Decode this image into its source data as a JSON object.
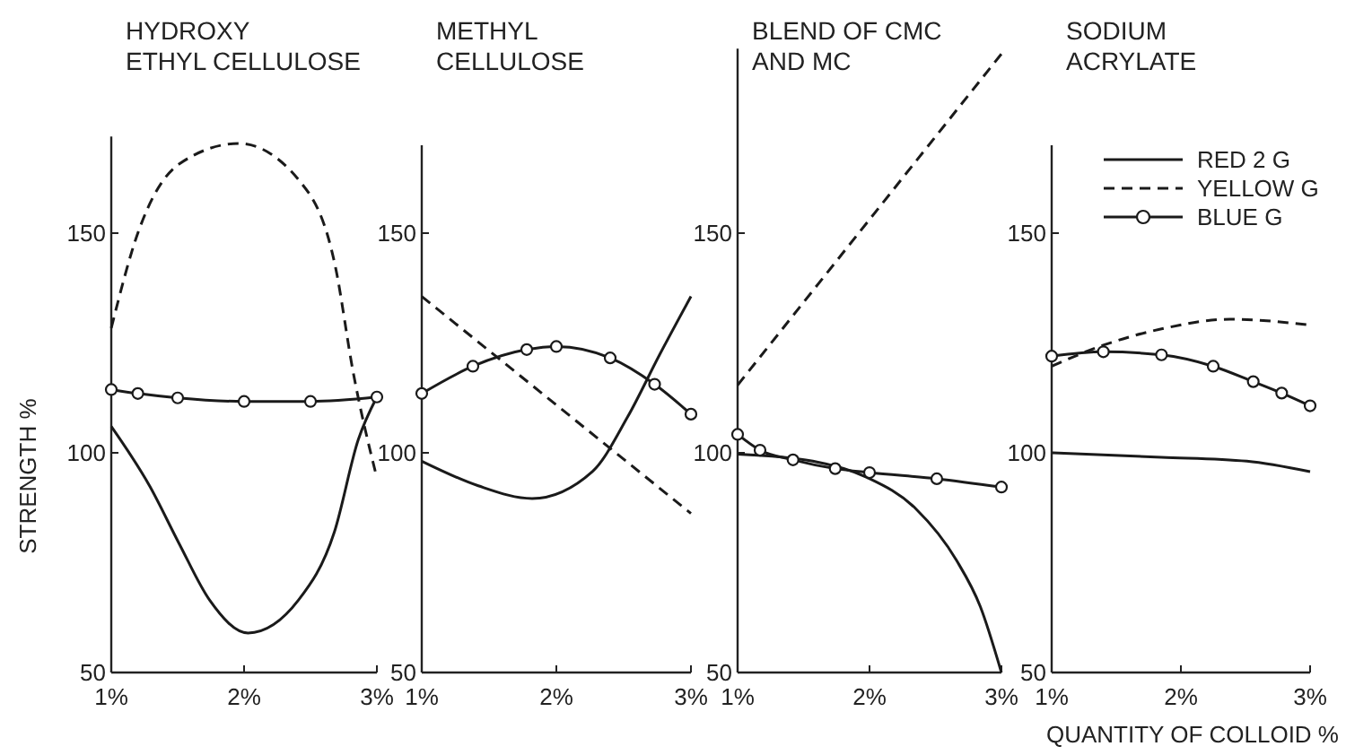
{
  "chart_data": [
    {
      "type": "line",
      "title": "HYDROXY\nETHYL CELLULOSE",
      "ylabel": "STRENGTH %",
      "xlim": [
        1,
        3
      ],
      "xticks": [
        {
          "value": 1,
          "label": "1%"
        },
        {
          "value": 2,
          "label": "2%"
        },
        {
          "value": 3,
          "label": "3%"
        }
      ],
      "ylim": [
        50,
        172
      ],
      "yticks": [
        50,
        100,
        150
      ],
      "legend": false,
      "series": [
        {
          "color": "#1a1a1a",
          "line_style": "solid",
          "x": [
            1,
            1.29,
            1.51,
            1.74,
            2.03,
            2.41,
            2.68,
            2.86,
            3
          ],
          "values": [
            106,
            92.4,
            79.4,
            66.5,
            59,
            66.5,
            82,
            103,
            112.7
          ]
        },
        {
          "color": "#1a1a1a",
          "line_style": "dashed",
          "x": [
            1,
            1.2,
            1.51,
            1.96,
            2.42,
            2.69,
            2.82,
            3
          ],
          "values": [
            128.4,
            150,
            165.7,
            170.4,
            161.8,
            142,
            118.6,
            94.3
          ]
        },
        {
          "color": "#1a1a1a",
          "line_style": "solid",
          "marker": "circle",
          "x": [
            1,
            1.2,
            1.5,
            2,
            2.5,
            3
          ],
          "values": [
            114.4,
            113.5,
            112.5,
            111.7,
            111.7,
            112.7
          ]
        }
      ]
    },
    {
      "type": "line",
      "title": "METHYL\nCELLULOSE",
      "xlim": [
        1,
        3
      ],
      "xticks": [
        {
          "value": 1,
          "label": "1%"
        },
        {
          "value": 2,
          "label": "2%"
        },
        {
          "value": 3,
          "label": "3%"
        }
      ],
      "ylim": [
        50,
        170
      ],
      "yticks": [
        50,
        100,
        150
      ],
      "legend": false,
      "series": [
        {
          "color": "#1a1a1a",
          "line_style": "solid",
          "x": [
            1,
            1.42,
            1.82,
            2.27,
            2.53,
            2.77,
            3
          ],
          "values": [
            98.1,
            92.5,
            89.6,
            95.8,
            108.2,
            122.5,
            135.6
          ]
        },
        {
          "color": "#1a1a1a",
          "line_style": "dashed",
          "x": [
            1,
            3
          ],
          "values": [
            135.6,
            86.2
          ]
        },
        {
          "color": "#1a1a1a",
          "line_style": "solid",
          "marker": "circle",
          "x": [
            1,
            1.38,
            1.78,
            2,
            2.4,
            2.73,
            3
          ],
          "values": [
            113.5,
            119.7,
            123.5,
            124.2,
            121.6,
            115.6,
            108.8
          ]
        }
      ]
    },
    {
      "type": "line",
      "title": "BLEND OF CMC\nAND MC",
      "xlim": [
        1,
        3
      ],
      "xticks": [
        {
          "value": 1,
          "label": "1%"
        },
        {
          "value": 2,
          "label": "2%"
        },
        {
          "value": 3,
          "label": "3%"
        }
      ],
      "ylim": [
        50,
        192
      ],
      "yticks": [
        50,
        100,
        150
      ],
      "legend": false,
      "series": [
        {
          "color": "#1a1a1a",
          "line_style": "solid",
          "x": [
            1,
            1.57,
            1.98,
            2.35,
            2.66,
            2.84,
            3
          ],
          "values": [
            99.7,
            98.1,
            94.4,
            87.3,
            75.5,
            65,
            50
          ]
        },
        {
          "color": "#1a1a1a",
          "line_style": "dashed",
          "x": [
            1,
            3
          ],
          "values": [
            115.4,
            190.8
          ]
        },
        {
          "color": "#1a1a1a",
          "line_style": "solid",
          "marker": "circle",
          "x": [
            1,
            1.17,
            1.42,
            1.74,
            2,
            2.51,
            3
          ],
          "values": [
            104.2,
            100.6,
            98.4,
            96.4,
            95.5,
            94.1,
            92.2
          ]
        }
      ]
    },
    {
      "type": "line",
      "title": "SODIUM\nACRYLATE",
      "xlabel": "QUANTITY OF COLLOID %",
      "xlim": [
        1,
        3
      ],
      "xticks": [
        {
          "value": 1,
          "label": "1%"
        },
        {
          "value": 2,
          "label": "2%"
        },
        {
          "value": 3,
          "label": "3%"
        }
      ],
      "ylim": [
        50,
        170
      ],
      "yticks": [
        50,
        100,
        150
      ],
      "legend": "top right",
      "series": [
        {
          "name": "RED 2 G",
          "color": "#1a1a1a",
          "line_style": "solid",
          "x": [
            1,
            1.85,
            2.51,
            3
          ],
          "values": [
            100,
            99,
            98.1,
            95.7
          ]
        },
        {
          "name": "YELLOW G",
          "color": "#1a1a1a",
          "line_style": "dashed",
          "x": [
            1,
            1.4,
            1.85,
            2.38,
            3
          ],
          "values": [
            119.7,
            124.5,
            128.2,
            130.4,
            129.1
          ]
        },
        {
          "name": "BLUE G",
          "color": "#1a1a1a",
          "line_style": "solid",
          "marker": "circle",
          "x": [
            1,
            1.4,
            1.85,
            2.25,
            2.56,
            2.78,
            3
          ],
          "values": [
            122,
            123,
            122.3,
            119.7,
            116.2,
            113.6,
            110.7
          ]
        }
      ]
    }
  ]
}
